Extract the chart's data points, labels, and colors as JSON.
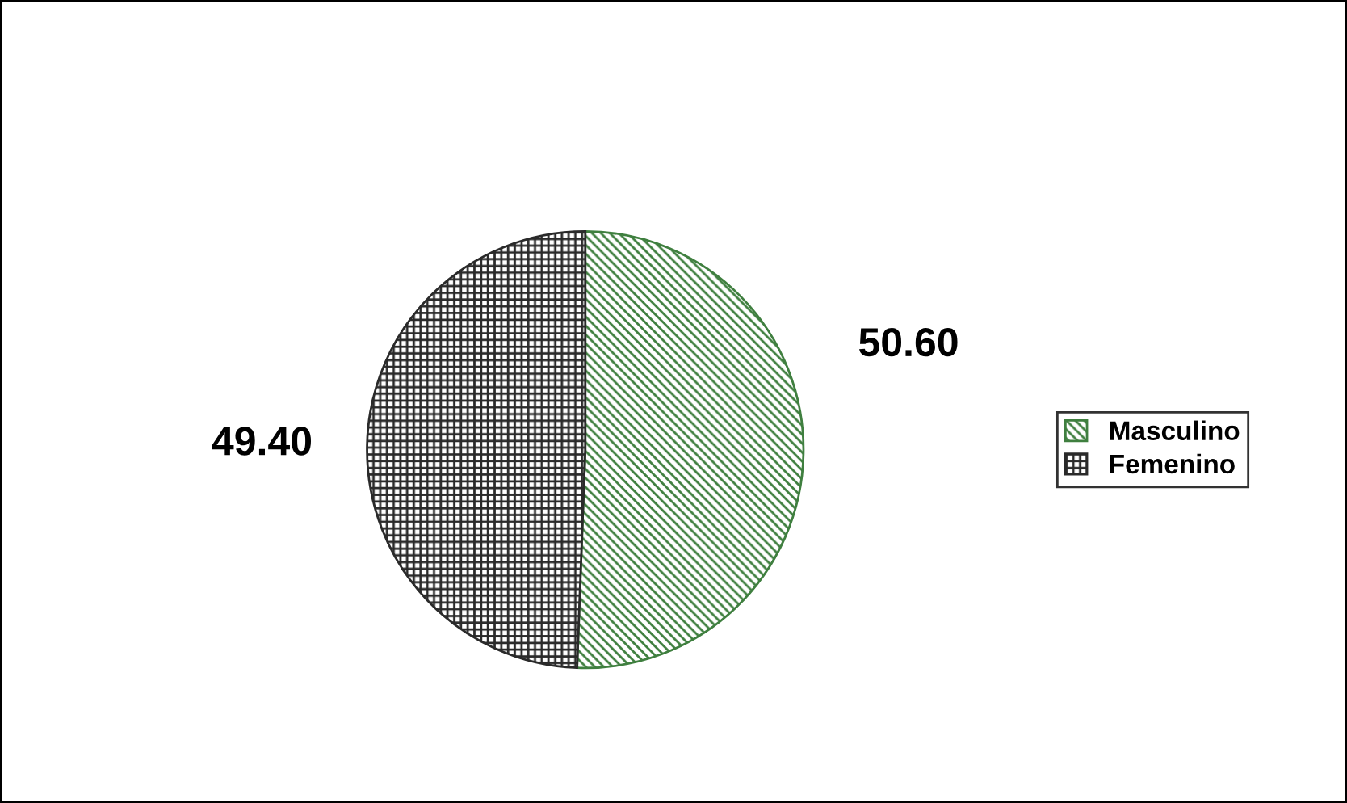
{
  "chart_data": {
    "type": "pie",
    "categories": [
      "Masculino",
      "Femenino"
    ],
    "values": [
      50.6,
      49.4
    ],
    "value_labels": [
      "50.60",
      "49.40"
    ],
    "colors": [
      "#3f7f3f",
      "#2a2a2a"
    ],
    "legend": "right"
  }
}
